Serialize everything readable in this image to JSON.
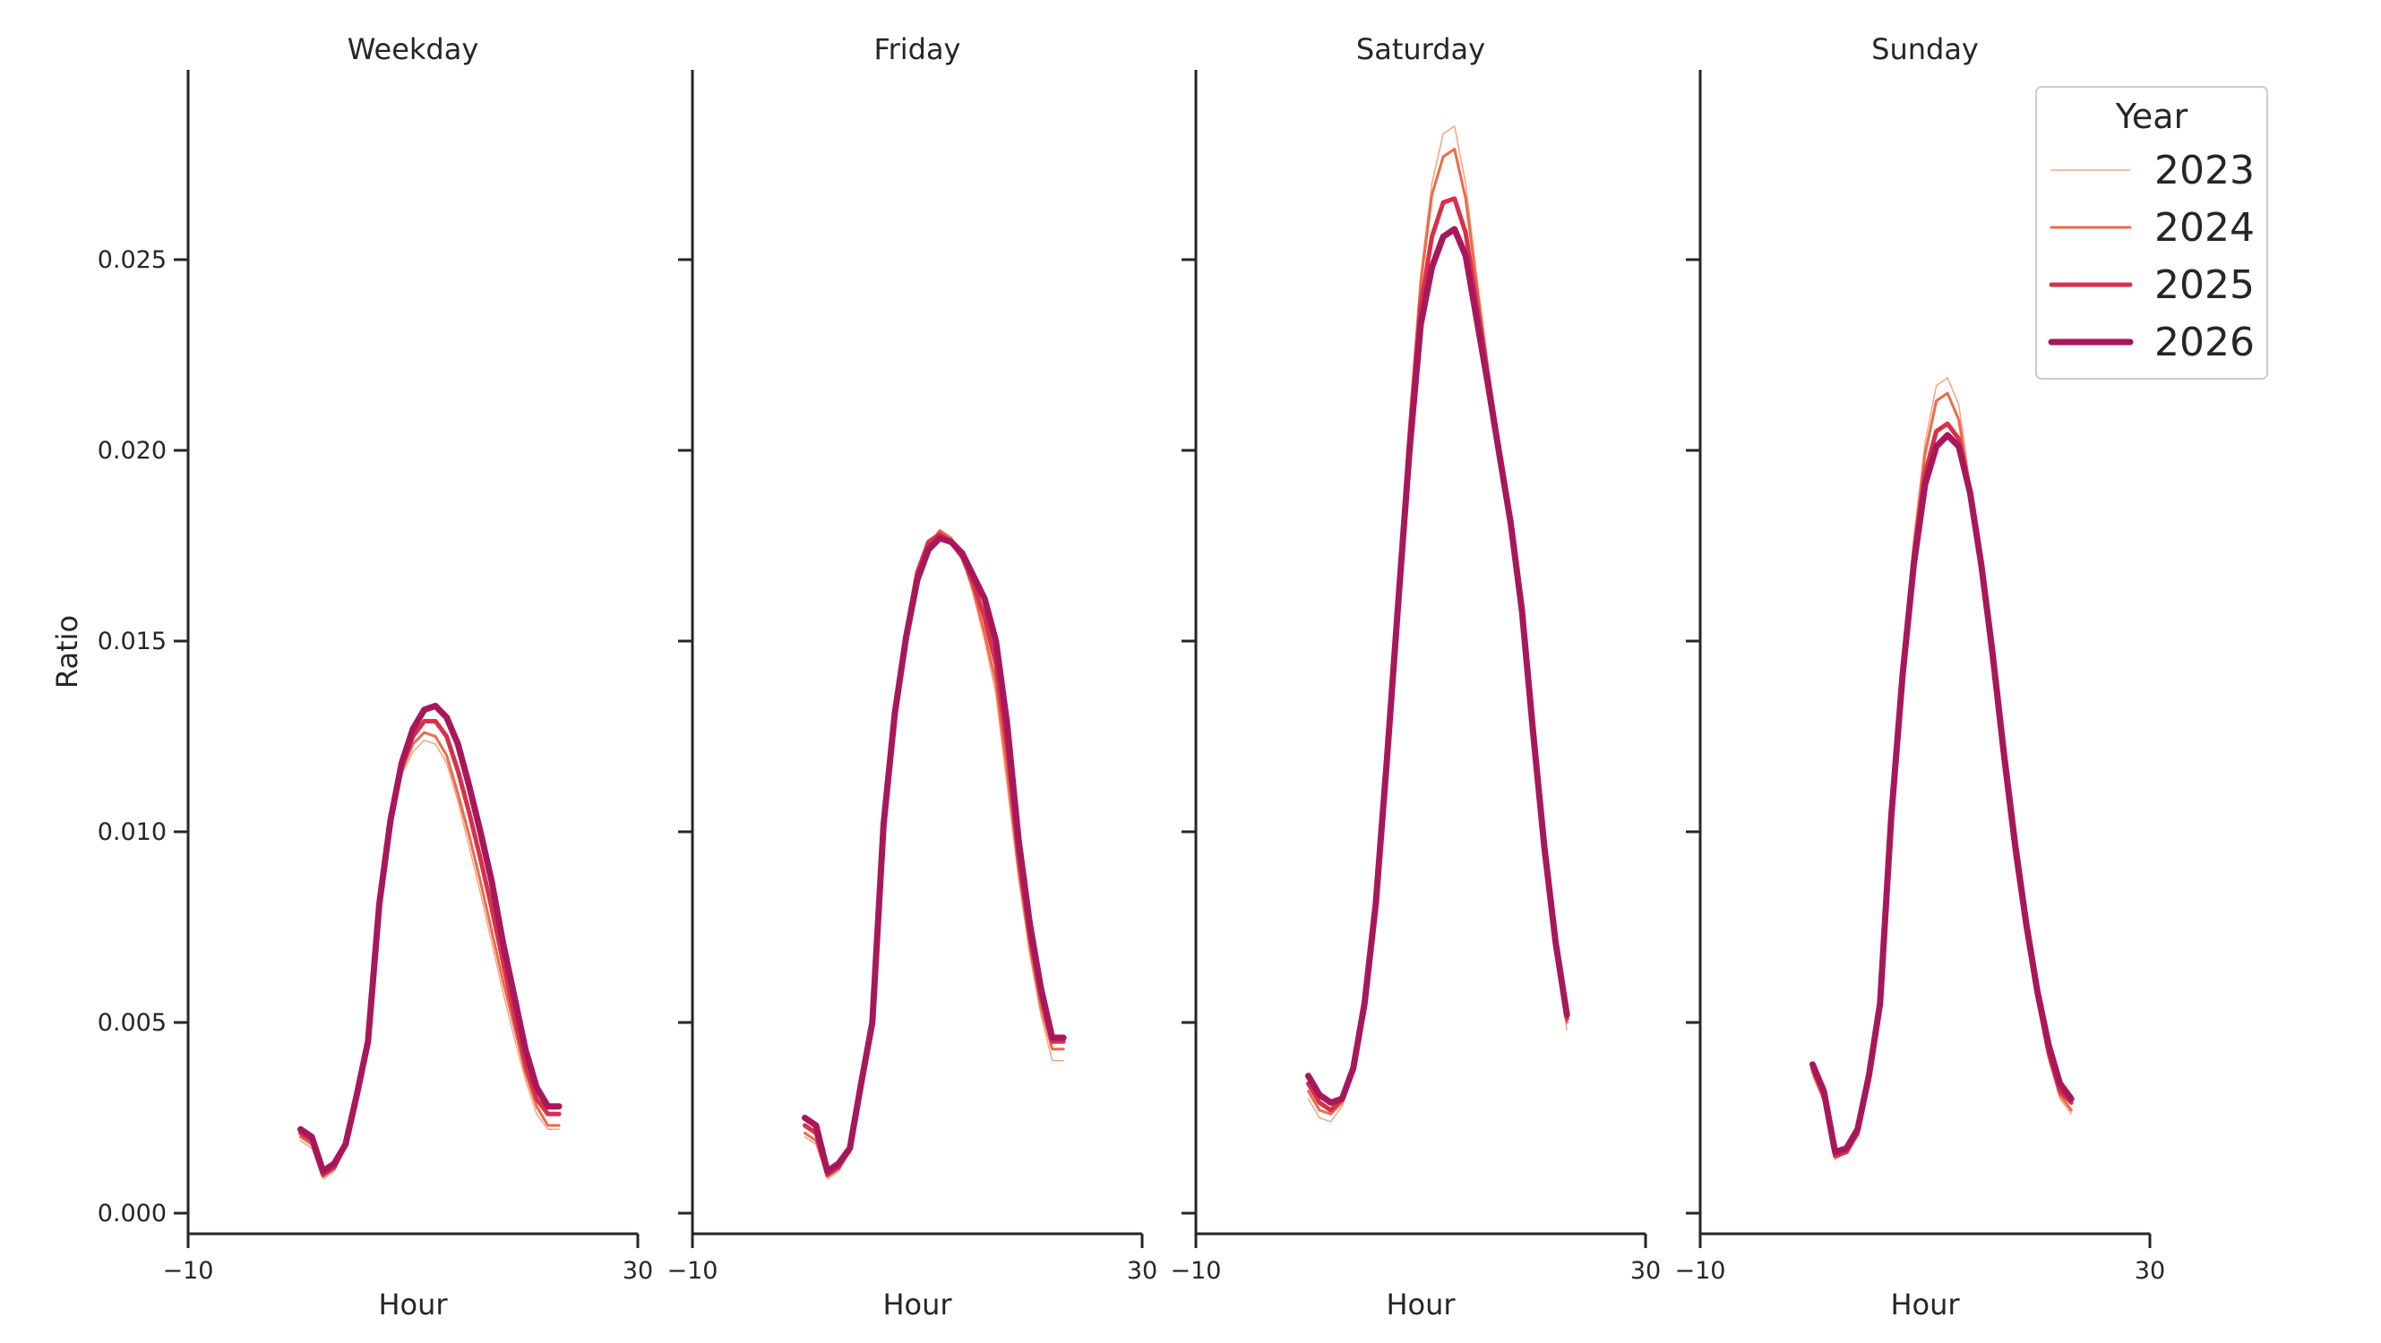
{
  "chart_data": {
    "type": "line",
    "layout": "facet-columns",
    "ylabel": "Ratio",
    "xlabel": "Hour",
    "xlim": [
      -10,
      30
    ],
    "ylim": [
      -0.0005,
      0.03
    ],
    "x_ticks": [
      -10,
      30
    ],
    "x_tick_labels": [
      "−10",
      "30"
    ],
    "y_ticks": [
      0.0,
      0.005,
      0.01,
      0.015,
      0.02,
      0.025
    ],
    "y_tick_labels": [
      "0.000",
      "0.005",
      "0.010",
      "0.015",
      "0.020",
      "0.025"
    ],
    "grid": false,
    "legend": {
      "title": "Year",
      "placement": "top-right",
      "entries": [
        {
          "label": "2023",
          "color": "#f4a582",
          "width": 1.5
        },
        {
          "label": "2024",
          "color": "#ee6a4a",
          "width": 3
        },
        {
          "label": "2025",
          "color": "#d8304a",
          "width": 5
        },
        {
          "label": "2026",
          "color": "#a8175c",
          "width": 7
        }
      ]
    },
    "x": [
      0,
      1,
      2,
      3,
      4,
      5,
      6,
      7,
      8,
      9,
      10,
      11,
      12,
      13,
      14,
      15,
      16,
      17,
      18,
      19,
      20,
      21,
      22,
      23
    ],
    "panels": [
      {
        "title": "Weekday",
        "series": [
          {
            "name": "2023",
            "values": [
              0.0019,
              0.0017,
              0.0009,
              0.0011,
              0.0017,
              0.0029,
              0.0044,
              0.0079,
              0.0101,
              0.0115,
              0.0121,
              0.0124,
              0.0123,
              0.0118,
              0.0108,
              0.0096,
              0.0084,
              0.0071,
              0.0058,
              0.0046,
              0.0035,
              0.0026,
              0.0022,
              0.0022
            ]
          },
          {
            "name": "2024",
            "values": [
              0.002,
              0.0018,
              0.001,
              0.0012,
              0.0018,
              0.003,
              0.0045,
              0.008,
              0.0102,
              0.0116,
              0.0123,
              0.0126,
              0.0125,
              0.012,
              0.011,
              0.0099,
              0.0087,
              0.0074,
              0.0061,
              0.0049,
              0.0037,
              0.0028,
              0.0023,
              0.0023
            ]
          },
          {
            "name": "2025",
            "values": [
              0.0021,
              0.0019,
              0.001,
              0.0012,
              0.0018,
              0.0031,
              0.0045,
              0.0081,
              0.0103,
              0.0117,
              0.0125,
              0.0129,
              0.0129,
              0.0125,
              0.0116,
              0.0105,
              0.0093,
              0.008,
              0.0066,
              0.0052,
              0.0039,
              0.003,
              0.0026,
              0.0026
            ]
          },
          {
            "name": "2026",
            "values": [
              0.0022,
              0.002,
              0.0011,
              0.0013,
              0.0018,
              0.0031,
              0.0045,
              0.0081,
              0.0103,
              0.0118,
              0.0127,
              0.0132,
              0.0133,
              0.013,
              0.0123,
              0.0112,
              0.01,
              0.0087,
              0.0071,
              0.0057,
              0.0043,
              0.0033,
              0.0028,
              0.0028
            ]
          }
        ]
      },
      {
        "title": "Friday",
        "series": [
          {
            "name": "2023",
            "values": [
              0.002,
              0.0018,
              0.0009,
              0.0011,
              0.0016,
              0.0033,
              0.005,
              0.01,
              0.0129,
              0.015,
              0.0165,
              0.0173,
              0.0178,
              0.0177,
              0.0172,
              0.0162,
              0.015,
              0.0136,
              0.0112,
              0.0088,
              0.0068,
              0.0052,
              0.004,
              0.004
            ]
          },
          {
            "name": "2024",
            "values": [
              0.0021,
              0.0019,
              0.001,
              0.0012,
              0.0016,
              0.0033,
              0.005,
              0.0101,
              0.013,
              0.0151,
              0.0167,
              0.0175,
              0.0179,
              0.0177,
              0.0172,
              0.0163,
              0.0152,
              0.0139,
              0.0116,
              0.009,
              0.007,
              0.0054,
              0.0043,
              0.0043
            ]
          },
          {
            "name": "2025",
            "values": [
              0.0023,
              0.0021,
              0.001,
              0.0012,
              0.0017,
              0.0034,
              0.005,
              0.0102,
              0.0131,
              0.0152,
              0.0168,
              0.0176,
              0.0178,
              0.0176,
              0.0172,
              0.0165,
              0.0156,
              0.0144,
              0.0122,
              0.0094,
              0.0073,
              0.0057,
              0.0045,
              0.0045
            ]
          },
          {
            "name": "2026",
            "values": [
              0.0025,
              0.0023,
              0.0011,
              0.0013,
              0.0017,
              0.0034,
              0.005,
              0.0102,
              0.0131,
              0.0151,
              0.0166,
              0.0174,
              0.0177,
              0.0176,
              0.0173,
              0.0167,
              0.0161,
              0.015,
              0.0128,
              0.0098,
              0.0076,
              0.0059,
              0.0046,
              0.0046
            ]
          }
        ]
      },
      {
        "title": "Saturday",
        "series": [
          {
            "name": "2023",
            "values": [
              0.003,
              0.0025,
              0.0024,
              0.0028,
              0.0037,
              0.0054,
              0.0081,
              0.0121,
              0.0165,
              0.0208,
              0.0246,
              0.027,
              0.0283,
              0.0285,
              0.027,
              0.0245,
              0.0222,
              0.0202,
              0.0181,
              0.0158,
              0.0125,
              0.0093,
              0.0068,
              0.0048
            ]
          },
          {
            "name": "2024",
            "values": [
              0.0032,
              0.0027,
              0.0026,
              0.0029,
              0.0037,
              0.0054,
              0.0081,
              0.0121,
              0.0164,
              0.0207,
              0.0244,
              0.0267,
              0.0277,
              0.0279,
              0.0266,
              0.0243,
              0.0221,
              0.0201,
              0.0181,
              0.0158,
              0.0125,
              0.0094,
              0.0069,
              0.005
            ]
          },
          {
            "name": "2025",
            "values": [
              0.0034,
              0.0029,
              0.0027,
              0.003,
              0.0038,
              0.0055,
              0.0081,
              0.012,
              0.0162,
              0.0203,
              0.0238,
              0.0256,
              0.0265,
              0.0266,
              0.0257,
              0.0238,
              0.0219,
              0.02,
              0.0181,
              0.0158,
              0.0126,
              0.0095,
              0.007,
              0.0051
            ]
          },
          {
            "name": "2026",
            "values": [
              0.0036,
              0.0031,
              0.0029,
              0.003,
              0.0038,
              0.0055,
              0.0081,
              0.0119,
              0.016,
              0.02,
              0.0233,
              0.0248,
              0.0256,
              0.0258,
              0.0251,
              0.0234,
              0.0217,
              0.0199,
              0.0181,
              0.0158,
              0.0126,
              0.0096,
              0.0071,
              0.0052
            ]
          }
        ]
      },
      {
        "title": "Sunday",
        "series": [
          {
            "name": "2023",
            "values": [
              0.0036,
              0.0029,
              0.0014,
              0.0016,
              0.0021,
              0.0035,
              0.0055,
              0.0105,
              0.0145,
              0.0177,
              0.0202,
              0.0217,
              0.0219,
              0.0212,
              0.0191,
              0.0168,
              0.0142,
              0.0116,
              0.0092,
              0.0072,
              0.0055,
              0.004,
              0.003,
              0.0026
            ]
          },
          {
            "name": "2024",
            "values": [
              0.0037,
              0.003,
              0.0015,
              0.0016,
              0.0021,
              0.0035,
              0.0055,
              0.0105,
              0.0144,
              0.0175,
              0.0199,
              0.0213,
              0.0215,
              0.0208,
              0.019,
              0.0168,
              0.0143,
              0.0117,
              0.0093,
              0.0073,
              0.0056,
              0.0041,
              0.0031,
              0.0027
            ]
          },
          {
            "name": "2025",
            "values": [
              0.0038,
              0.0031,
              0.0015,
              0.0016,
              0.0021,
              0.0036,
              0.0055,
              0.0104,
              0.0142,
              0.0172,
              0.0194,
              0.0205,
              0.0207,
              0.0203,
              0.0189,
              0.0169,
              0.0145,
              0.0119,
              0.0095,
              0.0075,
              0.0057,
              0.0042,
              0.0032,
              0.0029
            ]
          },
          {
            "name": "2026",
            "values": [
              0.0039,
              0.0032,
              0.0016,
              0.0017,
              0.0022,
              0.0036,
              0.0055,
              0.0104,
              0.0141,
              0.017,
              0.0191,
              0.0201,
              0.0204,
              0.0201,
              0.0189,
              0.017,
              0.0147,
              0.0121,
              0.0097,
              0.0076,
              0.0058,
              0.0044,
              0.0034,
              0.003
            ]
          }
        ]
      }
    ]
  }
}
